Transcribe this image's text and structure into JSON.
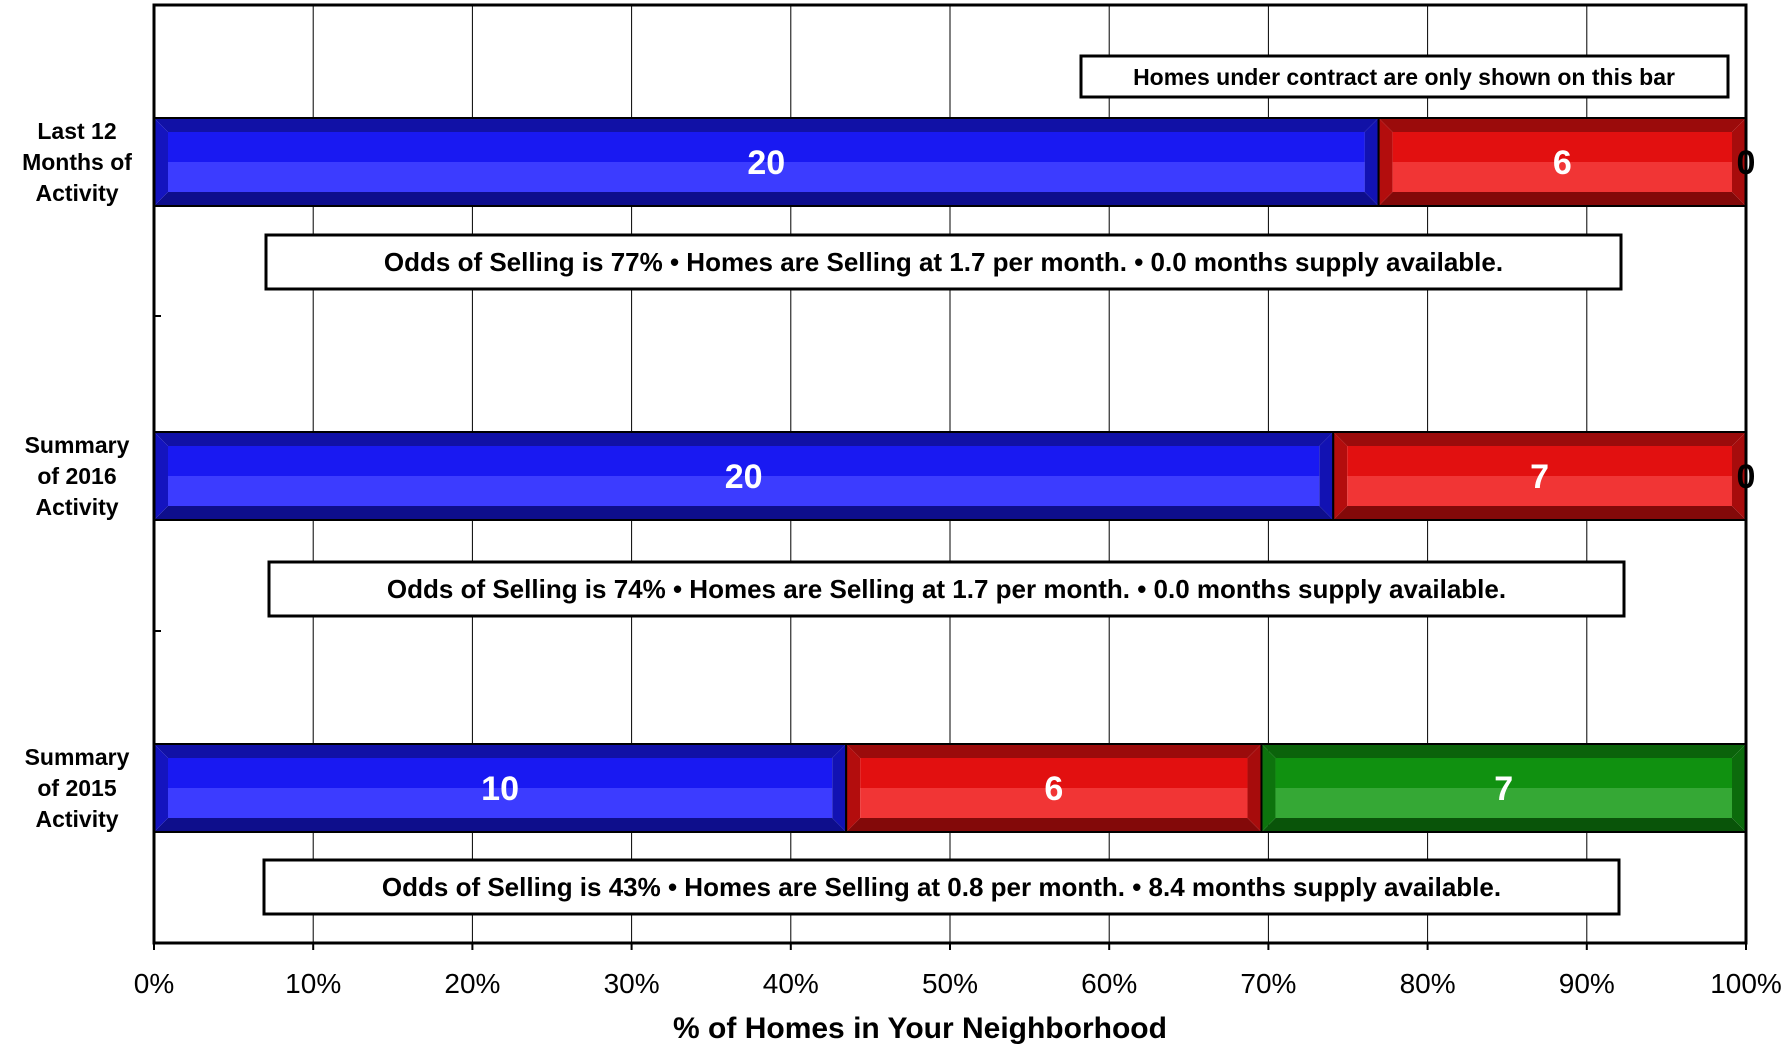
{
  "chart_data": {
    "type": "bar",
    "orientation": "horizontal",
    "stacked": "percent",
    "categories": [
      "Last 12 Months of Activity",
      "Summary of 2016 Activity",
      "Summary of 2015 Activity"
    ],
    "category_label_lines": [
      [
        "Last 12",
        "Months of",
        "Activity"
      ],
      [
        "Summary",
        "of 2016",
        "Activity"
      ],
      [
        "Summary",
        "of 2015",
        "Activity"
      ]
    ],
    "series": [
      {
        "values": [
          20,
          20,
          10
        ],
        "color": "#1a1aff"
      },
      {
        "values": [
          6,
          7,
          6
        ],
        "color": "#ee1111"
      },
      {
        "values": [
          0,
          0,
          7
        ],
        "color": "#119911"
      }
    ],
    "xlabel": "% of Homes in Your Neighborhood",
    "xlim": [
      0,
      100
    ],
    "xticks": [
      "0%",
      "10%",
      "20%",
      "30%",
      "40%",
      "50%",
      "60%",
      "70%",
      "80%",
      "90%",
      "100%"
    ],
    "grid": "vertical",
    "legend": "none",
    "note": "Homes under contract are only shown on this bar",
    "annotations": [
      "Odds of Selling is 77%  •  Homes are Selling at 1.7 per month.  •  0.0 months supply available.",
      "Odds of Selling is 74%  •  Homes are Selling at 1.7 per month.  •  0.0 months supply available.",
      "Odds of Selling is 43%  •  Homes are Selling at 0.8 per month.  •  8.4 months supply available."
    ]
  }
}
